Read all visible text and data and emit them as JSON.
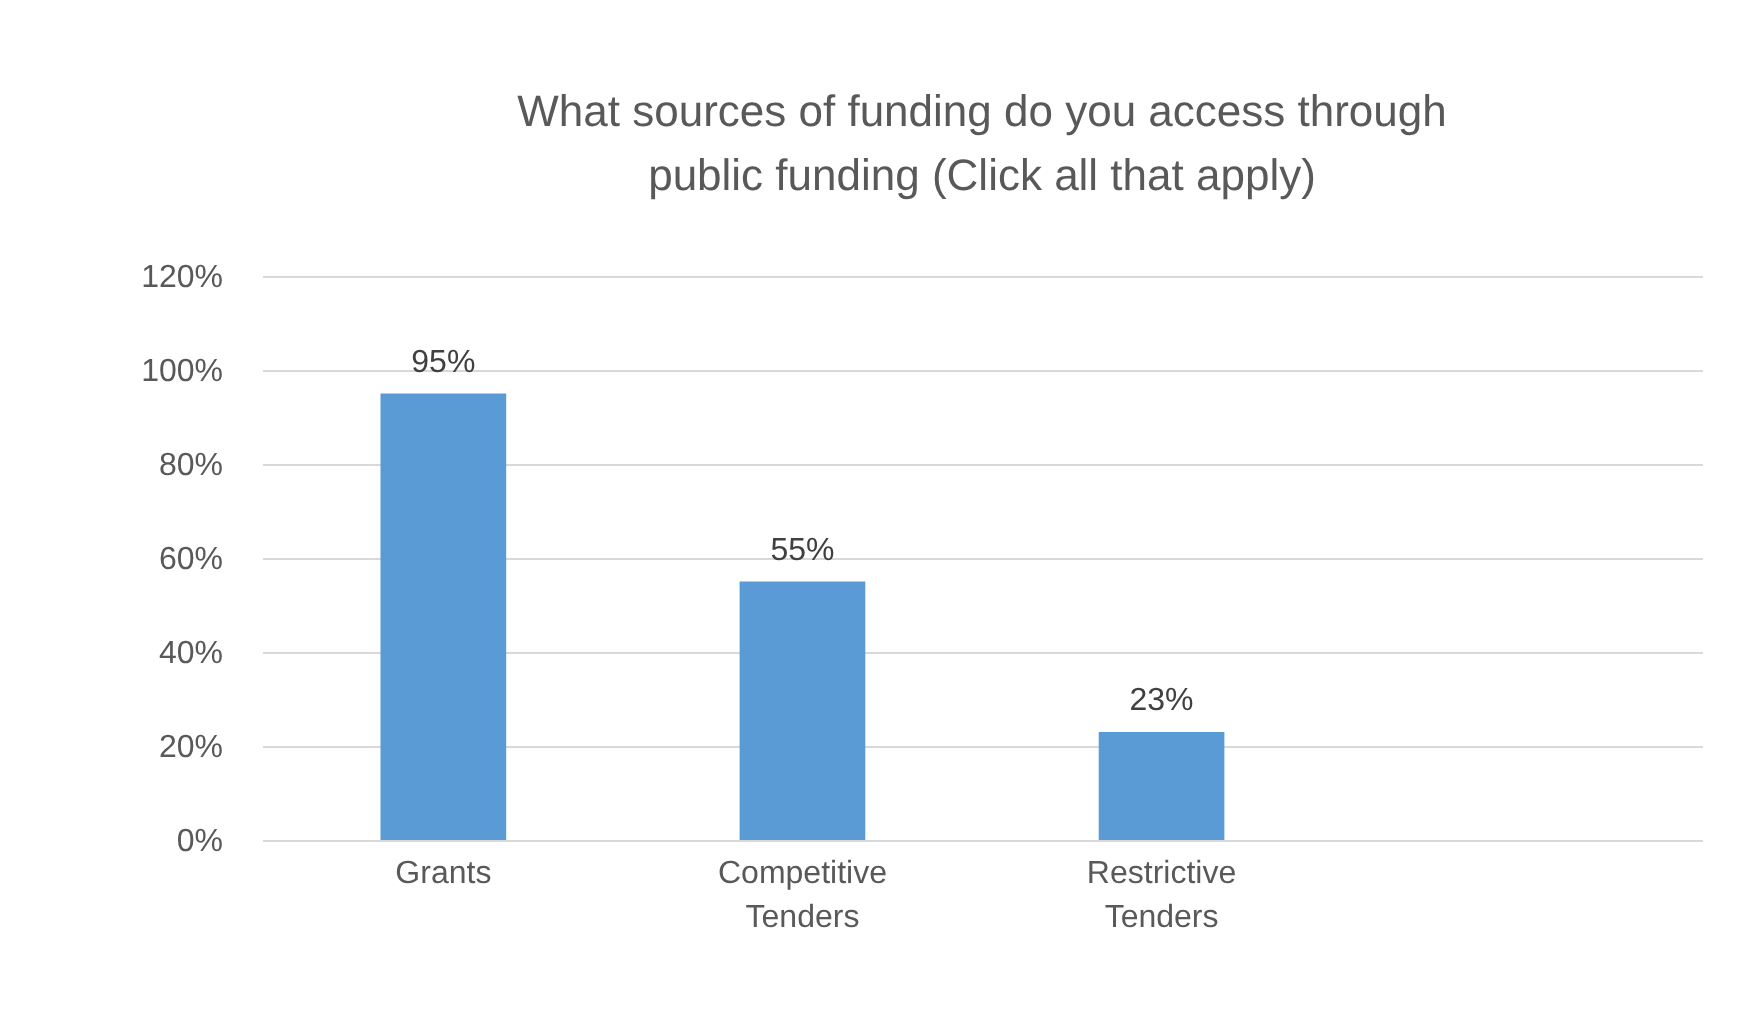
{
  "chart_data": {
    "type": "bar",
    "title": "What sources of funding do you access through public funding (Click all that apply)",
    "categories": [
      "Grants",
      "Competitive Tenders",
      "Restrictive Tenders",
      null
    ],
    "values": [
      95,
      55,
      23,
      null
    ],
    "value_labels": [
      "95%",
      "55%",
      "23%",
      null
    ],
    "color": "#5b9bd5",
    "ylim": [
      0,
      120
    ],
    "yticks": [
      {
        "value": 0,
        "label": "0%"
      },
      {
        "value": 20,
        "label": "20%"
      },
      {
        "value": 40,
        "label": "40%"
      },
      {
        "value": 60,
        "label": "60%"
      },
      {
        "value": 80,
        "label": "80%"
      },
      {
        "value": 100,
        "label": "100%"
      },
      {
        "value": 120,
        "label": "120%"
      }
    ],
    "grid": "y"
  }
}
